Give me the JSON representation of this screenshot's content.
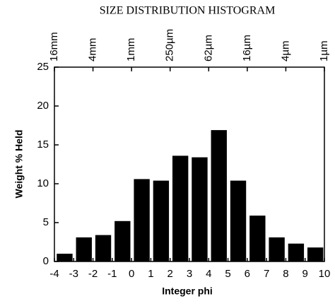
{
  "chart_data": {
    "type": "histogram",
    "title": "SIZE DISTRIBUTION HISTOGRAM",
    "xlabel": "Integer phi",
    "ylabel": "Weight % Held",
    "bins": [
      -4,
      -3,
      -2,
      -1,
      0,
      1,
      2,
      3,
      4,
      5,
      6,
      7,
      8,
      9,
      10
    ],
    "values": [
      1.0,
      3.1,
      3.4,
      5.2,
      10.6,
      10.4,
      13.6,
      13.4,
      16.9,
      10.4,
      5.9,
      3.1,
      2.3,
      1.8
    ],
    "color": "#000000",
    "xlim": [
      -4,
      10
    ],
    "ylim": [
      0,
      25
    ],
    "xticks": [
      -4,
      -3,
      -2,
      -1,
      0,
      1,
      2,
      3,
      4,
      5,
      6,
      7,
      8,
      9,
      10
    ],
    "yticks": [
      0,
      5,
      10,
      15,
      20,
      25
    ],
    "x2ticks": [
      {
        "value": -4,
        "label": "16mm"
      },
      {
        "value": -2,
        "label": "4mm"
      },
      {
        "value": 0,
        "label": "1mm"
      },
      {
        "value": 2,
        "label": "250µm"
      },
      {
        "value": 4,
        "label": "62µm"
      },
      {
        "value": 6,
        "label": "16µm"
      },
      {
        "value": 8,
        "label": "4µm"
      },
      {
        "value": 10,
        "label": "1µm"
      }
    ]
  }
}
